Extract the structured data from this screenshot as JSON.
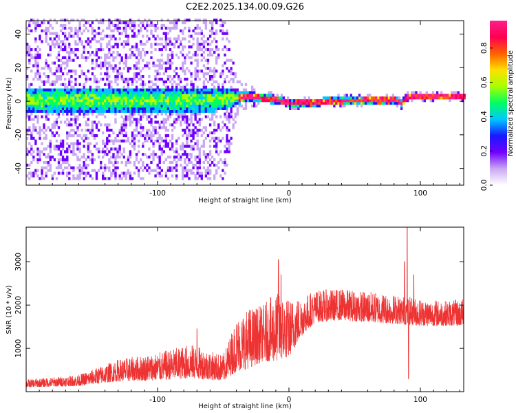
{
  "title": "C2E2.2025.134.00.09.G26",
  "chart_data": [
    {
      "type": "heatmap",
      "xlabel": "Height of straight line (km)",
      "ylabel": "Frequency (Hz)",
      "xlim": [
        -200,
        133
      ],
      "ylim": [
        -50,
        48
      ],
      "xticks": [
        -100,
        0,
        100
      ],
      "yticks": [
        -40,
        -20,
        0,
        20,
        40
      ],
      "x_tick_labels": [
        "-100",
        "0",
        "100"
      ],
      "y_tick_labels": [
        "-40",
        "-20",
        "0",
        "20",
        "40"
      ],
      "colorbar": {
        "label": "Normalized spectral amplitude",
        "range": [
          0,
          0.96
        ],
        "ticks": [
          "0.0",
          "0.2",
          "0.4",
          "0.6",
          "0.8"
        ],
        "colormap": [
          "#ffffff",
          "#c9a8f2",
          "#7000ff",
          "#1818ff",
          "#00c8ff",
          "#00ff60",
          "#a8ff00",
          "#ffe000",
          "#ff6000",
          "#ff0050",
          "#ff1f8a"
        ]
      },
      "signal_band": {
        "center_hz": [
          [
            -200,
            0
          ],
          [
            -60,
            0
          ],
          [
            -30,
            2
          ],
          [
            -10,
            0
          ],
          [
            0,
            -2
          ],
          [
            60,
            0
          ],
          [
            80,
            0
          ],
          [
            85,
            -2
          ],
          [
            90,
            2
          ],
          [
            133,
            2
          ]
        ],
        "halfwidth_hz": [
          [
            -200,
            7
          ],
          [
            -50,
            7
          ],
          [
            -35,
            3
          ],
          [
            -20,
            2.5
          ],
          [
            133,
            2
          ]
        ],
        "noise_extent_hz": [
          [
            -200,
            48
          ],
          [
            -50,
            48
          ],
          [
            -40,
            10
          ],
          [
            -20,
            4
          ],
          [
            133,
            3
          ]
        ]
      },
      "grid": false
    },
    {
      "type": "line",
      "xlabel": "Height of straight line (km)",
      "ylabel": "SNR (10 * v/v)",
      "xlim": [
        -200,
        133
      ],
      "ylim": [
        0,
        3800
      ],
      "xticks": [
        -100,
        0,
        100
      ],
      "yticks": [
        1000,
        2000,
        3000
      ],
      "x_tick_labels": [
        "-100",
        "0",
        "100"
      ],
      "y_tick_labels": [
        "1000",
        "2000",
        "3000"
      ],
      "line_color": "#ee3333",
      "series": [
        {
          "baseline_knots": [
            [
              -200,
              100
            ],
            [
              -160,
              130
            ],
            [
              -130,
              240
            ],
            [
              -100,
              260
            ],
            [
              -75,
              310
            ],
            [
              -50,
              250
            ],
            [
              -40,
              460
            ],
            [
              -30,
              540
            ],
            [
              -20,
              700
            ],
            [
              -10,
              700
            ],
            [
              0,
              800
            ],
            [
              10,
              1300
            ],
            [
              20,
              1600
            ],
            [
              40,
              1650
            ],
            [
              60,
              1600
            ],
            [
              80,
              1570
            ],
            [
              100,
              1520
            ],
            [
              120,
              1520
            ],
            [
              133,
              1520
            ]
          ],
          "peak_knots": [
            [
              -200,
              280
            ],
            [
              -160,
              390
            ],
            [
              -130,
              750
            ],
            [
              -100,
              900
            ],
            [
              -75,
              1100
            ],
            [
              -50,
              850
            ],
            [
              -40,
              1700
            ],
            [
              -30,
              1950
            ],
            [
              -20,
              2000
            ],
            [
              -10,
              2300
            ],
            [
              0,
              2150
            ],
            [
              10,
              2200
            ],
            [
              20,
              2350
            ],
            [
              40,
              2380
            ],
            [
              60,
              2320
            ],
            [
              80,
              2250
            ],
            [
              100,
              2150
            ],
            [
              120,
              2100
            ],
            [
              133,
              2150
            ]
          ],
          "spikes": [
            [
              -70,
              1450
            ],
            [
              -8,
              3050
            ],
            [
              -6,
              2700
            ],
            [
              -3,
              1300
            ],
            [
              90,
              3800
            ],
            [
              88,
              3000
            ],
            [
              91,
              300
            ],
            [
              95,
              2700
            ]
          ]
        }
      ],
      "grid": false
    }
  ]
}
